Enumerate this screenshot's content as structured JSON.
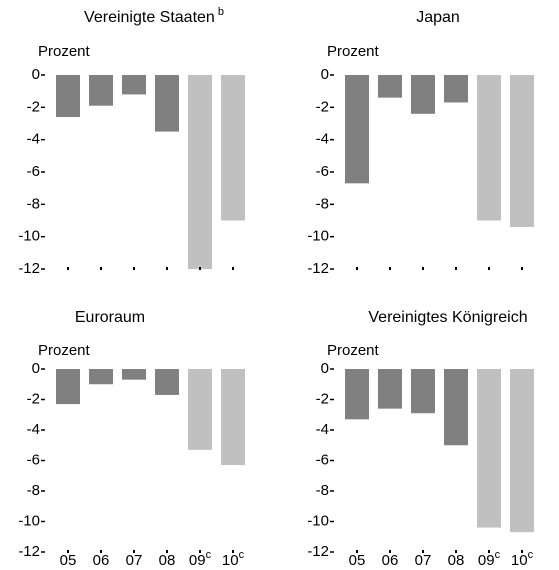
{
  "chart_data": [
    {
      "type": "bar",
      "title": "Vereinigte Staaten",
      "title_superscript": "b",
      "ylabel": "Prozent",
      "values": [
        -2.6,
        -1.9,
        -1.2,
        -3.5,
        -12,
        -9.0
      ],
      "colors": [
        "#808080",
        "#808080",
        "#808080",
        "#808080",
        "#c0c0c0",
        "#c0c0c0"
      ],
      "ylim": [
        -12,
        0
      ],
      "yticks": [
        0,
        -2,
        -4,
        -6,
        -8,
        -10,
        -12
      ]
    },
    {
      "type": "bar",
      "title": "Japan",
      "ylabel": "Prozent",
      "values": [
        -6.7,
        -1.4,
        -2.4,
        -1.7,
        -9.0,
        -9.4
      ],
      "colors": [
        "#808080",
        "#808080",
        "#808080",
        "#808080",
        "#c0c0c0",
        "#c0c0c0"
      ],
      "ylim": [
        -12,
        0
      ],
      "yticks": [
        0,
        -2,
        -4,
        -6,
        -8,
        -10,
        -12
      ]
    },
    {
      "type": "bar",
      "title": "Euroraum",
      "ylabel": "Prozent",
      "categories": [
        "05",
        "06",
        "07",
        "08",
        "09",
        "10"
      ],
      "category_superscripts": [
        null,
        null,
        null,
        null,
        "c",
        "c"
      ],
      "values": [
        -2.3,
        -1.0,
        -0.7,
        -1.7,
        -5.3,
        -6.3
      ],
      "colors": [
        "#808080",
        "#808080",
        "#808080",
        "#808080",
        "#c0c0c0",
        "#c0c0c0"
      ],
      "ylim": [
        -12,
        0
      ],
      "yticks": [
        0,
        -2,
        -4,
        -6,
        -8,
        -10,
        -12
      ]
    },
    {
      "type": "bar",
      "title": "Vereinigtes Königreich",
      "ylabel": "Prozent",
      "categories": [
        "05",
        "06",
        "07",
        "08",
        "09",
        "10"
      ],
      "category_superscripts": [
        null,
        null,
        null,
        null,
        "c",
        "c"
      ],
      "values": [
        -3.3,
        -2.6,
        -2.9,
        -5.0,
        -10.4,
        -10.7
      ],
      "colors": [
        "#808080",
        "#808080",
        "#808080",
        "#808080",
        "#c0c0c0",
        "#c0c0c0"
      ],
      "ylim": [
        -12,
        0
      ],
      "yticks": [
        0,
        -2,
        -4,
        -6,
        -8,
        -10,
        -12
      ]
    }
  ]
}
